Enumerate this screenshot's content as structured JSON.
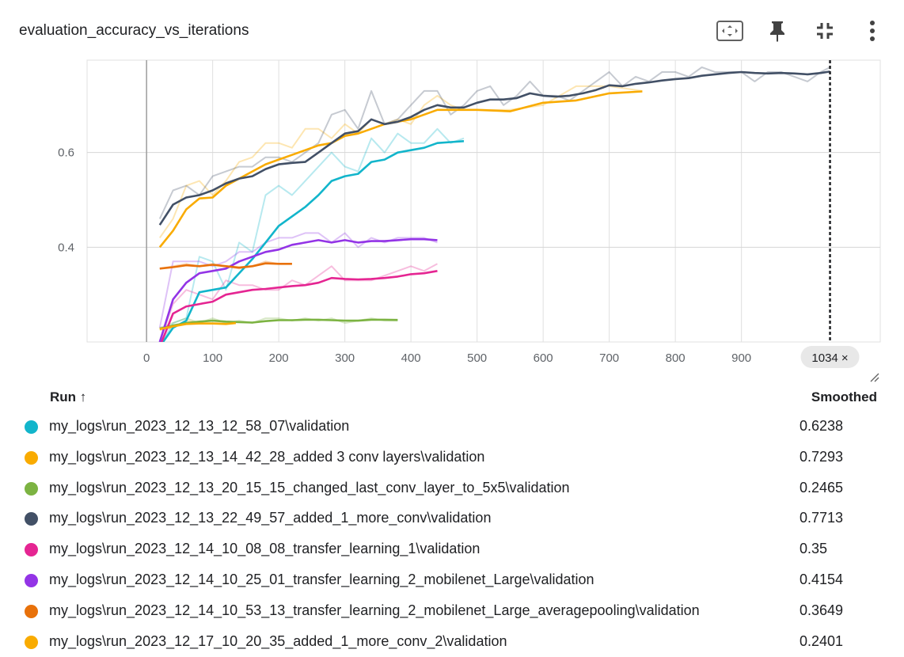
{
  "card": {
    "title": "evaluation_accuracy_vs_iterations",
    "icons": [
      "fit-to-screen-icon",
      "pin-icon",
      "collapse-icon",
      "more-vert-icon"
    ]
  },
  "cursor": {
    "step": 1034,
    "label": "1034 ×"
  },
  "legend": {
    "run_header": "Run ↑",
    "smoothed_header": "Smoothed"
  },
  "chart_data": {
    "type": "line",
    "title": "evaluation_accuracy_vs_iterations",
    "xlabel": "",
    "ylabel": "",
    "x_ticks": [
      "0",
      "100",
      "200",
      "300",
      "400",
      "500",
      "600",
      "700",
      "800",
      "900"
    ],
    "y_ticks": [
      "0.4",
      "0.6"
    ],
    "xlim": [
      -90,
      1110
    ],
    "ylim": [
      0.2,
      0.795
    ],
    "grid": true,
    "series": [
      {
        "name": "my_logs\\run_2023_12_13_12_58_07\\validation",
        "color": "#12b5cb",
        "smoothed_value": "0.6238",
        "x": [
          20,
          40,
          60,
          80,
          100,
          120,
          140,
          160,
          180,
          200,
          220,
          240,
          260,
          280,
          300,
          320,
          340,
          360,
          380,
          400,
          420,
          440,
          460,
          480
        ],
        "raw": [
          0.19,
          0.24,
          0.25,
          0.38,
          0.37,
          0.31,
          0.41,
          0.39,
          0.51,
          0.53,
          0.51,
          0.54,
          0.57,
          0.6,
          0.57,
          0.56,
          0.63,
          0.6,
          0.64,
          0.62,
          0.62,
          0.65,
          0.62,
          0.63
        ],
        "smoothed": [
          0.19,
          0.23,
          0.245,
          0.305,
          0.31,
          0.315,
          0.345,
          0.375,
          0.41,
          0.445,
          0.465,
          0.485,
          0.51,
          0.54,
          0.55,
          0.555,
          0.58,
          0.585,
          0.6,
          0.605,
          0.61,
          0.62,
          0.622,
          0.624
        ]
      },
      {
        "name": "my_logs\\run_2023_12_13_14_42_28_added 3 conv layers\\validation",
        "color": "#f9ab00",
        "smoothed_value": "0.7293",
        "x": [
          20,
          40,
          60,
          80,
          100,
          120,
          140,
          160,
          180,
          200,
          220,
          240,
          260,
          280,
          300,
          320,
          340,
          360,
          380,
          400,
          420,
          440,
          460,
          480,
          500,
          550,
          600,
          650,
          700,
          750
        ],
        "raw": [
          0.42,
          0.46,
          0.53,
          0.54,
          0.51,
          0.54,
          0.58,
          0.59,
          0.62,
          0.62,
          0.61,
          0.65,
          0.65,
          0.63,
          0.66,
          0.64,
          0.67,
          0.66,
          0.67,
          0.66,
          0.7,
          0.72,
          0.7,
          0.69,
          0.69,
          0.69,
          0.7,
          0.74,
          0.74,
          0.73
        ],
        "smoothed": [
          0.4,
          0.435,
          0.48,
          0.503,
          0.505,
          0.53,
          0.545,
          0.56,
          0.575,
          0.585,
          0.595,
          0.605,
          0.615,
          0.62,
          0.635,
          0.64,
          0.65,
          0.66,
          0.665,
          0.67,
          0.68,
          0.69,
          0.69,
          0.69,
          0.69,
          0.687,
          0.705,
          0.71,
          0.725,
          0.729
        ]
      },
      {
        "name": "my_logs\\run_2023_12_13_20_15_15_changed_last_conv_layer_to_5x5\\validation",
        "color": "#7cb342",
        "smoothed_value": "0.2465",
        "x": [
          20,
          40,
          60,
          80,
          100,
          120,
          140,
          160,
          180,
          200,
          220,
          240,
          260,
          280,
          300,
          320,
          340,
          360,
          380
        ],
        "raw": [
          0.23,
          0.24,
          0.25,
          0.24,
          0.25,
          0.24,
          0.245,
          0.24,
          0.25,
          0.25,
          0.245,
          0.25,
          0.245,
          0.25,
          0.24,
          0.245,
          0.25,
          0.245,
          0.245
        ],
        "smoothed": [
          0.228,
          0.235,
          0.24,
          0.243,
          0.245,
          0.243,
          0.242,
          0.241,
          0.244,
          0.246,
          0.246,
          0.247,
          0.247,
          0.246,
          0.245,
          0.245,
          0.247,
          0.247,
          0.2465
        ]
      },
      {
        "name": "my_logs\\run_2023_12_13_22_49_57_added_1_more_conv\\validation",
        "color": "#425066",
        "smoothed_value": "0.7713",
        "x": [
          20,
          40,
          60,
          80,
          100,
          120,
          140,
          160,
          180,
          200,
          220,
          240,
          260,
          280,
          300,
          320,
          340,
          360,
          380,
          400,
          420,
          440,
          460,
          480,
          500,
          520,
          540,
          560,
          580,
          600,
          620,
          640,
          660,
          680,
          700,
          720,
          740,
          760,
          780,
          800,
          820,
          840,
          860,
          880,
          900,
          920,
          940,
          960,
          980,
          1000,
          1020,
          1034
        ],
        "raw": [
          0.46,
          0.52,
          0.53,
          0.51,
          0.55,
          0.56,
          0.57,
          0.57,
          0.59,
          0.59,
          0.58,
          0.6,
          0.62,
          0.68,
          0.69,
          0.65,
          0.73,
          0.66,
          0.67,
          0.7,
          0.73,
          0.73,
          0.68,
          0.7,
          0.73,
          0.74,
          0.7,
          0.72,
          0.75,
          0.72,
          0.72,
          0.71,
          0.73,
          0.75,
          0.77,
          0.74,
          0.76,
          0.75,
          0.77,
          0.77,
          0.76,
          0.78,
          0.77,
          0.77,
          0.77,
          0.75,
          0.77,
          0.77,
          0.76,
          0.75,
          0.77,
          0.78
        ],
        "smoothed": [
          0.447,
          0.49,
          0.505,
          0.51,
          0.52,
          0.535,
          0.545,
          0.55,
          0.565,
          0.575,
          0.578,
          0.58,
          0.6,
          0.62,
          0.64,
          0.645,
          0.67,
          0.66,
          0.665,
          0.675,
          0.69,
          0.7,
          0.695,
          0.695,
          0.705,
          0.712,
          0.712,
          0.715,
          0.725,
          0.72,
          0.718,
          0.72,
          0.725,
          0.732,
          0.742,
          0.74,
          0.745,
          0.748,
          0.752,
          0.755,
          0.757,
          0.762,
          0.765,
          0.768,
          0.77,
          0.768,
          0.767,
          0.768,
          0.767,
          0.765,
          0.768,
          0.771
        ]
      },
      {
        "name": "my_logs\\run_2023_12_14_10_08_08_transfer_learning_1\\validation",
        "color": "#e52592",
        "smoothed_value": "0.35",
        "x": [
          20,
          40,
          60,
          80,
          100,
          120,
          140,
          160,
          180,
          200,
          220,
          240,
          260,
          280,
          300,
          320,
          340,
          360,
          380,
          400,
          420,
          440
        ],
        "raw": [
          0.2,
          0.28,
          0.31,
          0.3,
          0.29,
          0.33,
          0.32,
          0.32,
          0.31,
          0.31,
          0.33,
          0.32,
          0.34,
          0.36,
          0.33,
          0.33,
          0.33,
          0.34,
          0.35,
          0.36,
          0.35,
          0.365
        ],
        "smoothed": [
          0.19,
          0.26,
          0.275,
          0.28,
          0.285,
          0.3,
          0.305,
          0.31,
          0.312,
          0.315,
          0.318,
          0.32,
          0.325,
          0.335,
          0.333,
          0.332,
          0.333,
          0.335,
          0.338,
          0.343,
          0.345,
          0.35
        ]
      },
      {
        "name": "my_logs\\run_2023_12_14_10_25_01_transfer_learning_2_mobilenet_Large\\validation",
        "color": "#9334e6",
        "smoothed_value": "0.4154",
        "x": [
          20,
          40,
          60,
          80,
          100,
          120,
          140,
          160,
          180,
          200,
          220,
          240,
          260,
          280,
          300,
          320,
          340,
          360,
          380,
          400,
          420,
          440
        ],
        "raw": [
          0.23,
          0.37,
          0.37,
          0.37,
          0.36,
          0.37,
          0.39,
          0.39,
          0.41,
          0.42,
          0.42,
          0.43,
          0.43,
          0.41,
          0.43,
          0.4,
          0.42,
          0.41,
          0.42,
          0.42,
          0.42,
          0.41
        ],
        "smoothed": [
          0.2,
          0.29,
          0.325,
          0.345,
          0.35,
          0.355,
          0.37,
          0.38,
          0.39,
          0.395,
          0.405,
          0.41,
          0.415,
          0.41,
          0.415,
          0.41,
          0.413,
          0.413,
          0.415,
          0.417,
          0.417,
          0.415
        ]
      },
      {
        "name": "my_logs\\run_2023_12_14_10_53_13_transfer_learning_2_mobilenet_Large_averagepooling\\validation",
        "color": "#e8710a",
        "smoothed_value": "0.3649",
        "x": [
          20,
          40,
          60,
          80,
          100,
          120,
          140,
          160,
          180,
          200,
          220
        ],
        "raw": [
          0.355,
          0.36,
          0.365,
          0.36,
          0.365,
          0.36,
          0.355,
          0.36,
          0.37,
          0.365,
          0.365
        ],
        "smoothed": [
          0.355,
          0.358,
          0.362,
          0.36,
          0.363,
          0.36,
          0.357,
          0.36,
          0.366,
          0.365,
          0.365
        ]
      },
      {
        "name": "my_logs\\run_2023_12_17_10_20_35_added_1_more_conv_2\\validation",
        "color": "#f9ab00",
        "smoothed_value": "0.2401",
        "x": [
          20,
          40,
          60,
          80,
          100,
          120,
          135
        ],
        "raw": [
          0.225,
          0.23,
          0.245,
          0.24,
          0.24,
          0.24,
          0.24
        ],
        "smoothed": [
          0.227,
          0.233,
          0.238,
          0.239,
          0.239,
          0.238,
          0.24
        ]
      }
    ]
  }
}
